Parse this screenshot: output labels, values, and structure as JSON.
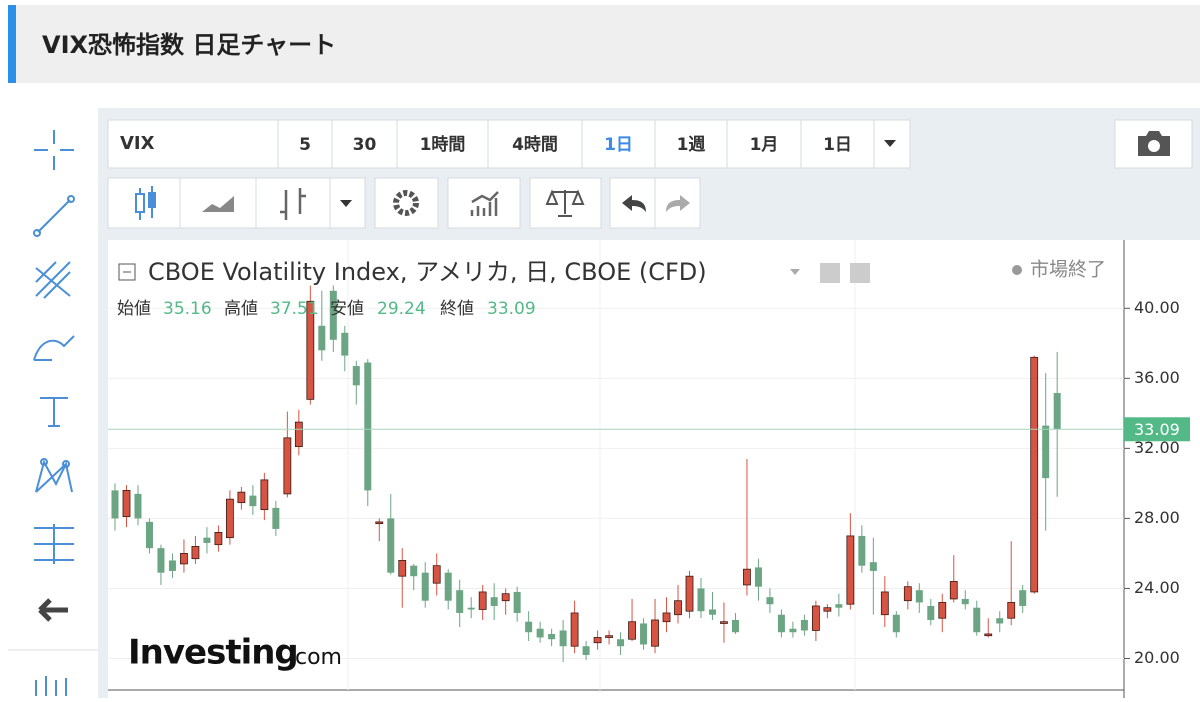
{
  "header": {
    "title": "VIX恐怖指数 日足チャート"
  },
  "toolbar": {
    "symbol": "VIX",
    "intervals": [
      "5",
      "30",
      "1時間",
      "4時間",
      "1日",
      "1週",
      "1月",
      "1日"
    ],
    "selected": 4
  },
  "legend": {
    "title": "CBOE Volatility Index, アメリカ, 日, CBOE (CFD)",
    "status": "市場終了",
    "open_label": "始値",
    "high_label": "高値",
    "low_label": "安値",
    "close_label": "終値"
  },
  "logo": {
    "main": "Investing",
    "suffix": ".com"
  },
  "chart_data": {
    "type": "candlestick",
    "up_color": "#d75442",
    "down_color": "#6ba583",
    "open": [
      29.6,
      28.1,
      29.4,
      27.8,
      26.3,
      25.6,
      25.4,
      25.7,
      26.9,
      26.5,
      26.9,
      28.9,
      29.3,
      28.5,
      28.6,
      29.4,
      32.1,
      34.8,
      39,
      41.0,
      38.6,
      36.7,
      36.9,
      27.7,
      28.0,
      24.7,
      25.3,
      24.9,
      24.3,
      24.9,
      23.9,
      22.9,
      22.8,
      23.5,
      23.3,
      23.8,
      22.1,
      21.7,
      21.4,
      21.6,
      20.7,
      20.7,
      20.9,
      21.2,
      21.1,
      21.1,
      22.0,
      20.7,
      22.1,
      22.5,
      22.7,
      24.0,
      22.8,
      22.0,
      22.2,
      24.2,
      25.2,
      23.5,
      22.5,
      21.7,
      22.2,
      21.6,
      22.7,
      23.1,
      23.1,
      27.0,
      25.5,
      22.5,
      22.5,
      23.3,
      23.9,
      23.0,
      22.3,
      23.4,
      23.4,
      22.9,
      21.3,
      22.3,
      22.3,
      23.9,
      23.8,
      33.3,
      35.16
    ],
    "high": [
      30,
      29.9,
      29.9,
      28,
      26.5,
      26,
      26.8,
      27,
      27.5,
      27.6,
      29.6,
      29.8,
      29.9,
      30.6,
      29,
      34.1,
      34.2,
      41.3,
      41,
      41.3,
      39,
      37,
      37.1,
      28,
      29.4,
      26.3,
      25.4,
      25.5,
      26,
      25.1,
      24.5,
      23.5,
      24.2,
      24.3,
      24,
      24.1,
      22.7,
      22.1,
      21.7,
      22.2,
      23.3,
      21,
      21.6,
      21.6,
      21.5,
      23.4,
      22.3,
      23.4,
      23.5,
      24.2,
      25.0,
      24.6,
      23.8,
      23.2,
      22.6,
      31.4,
      25.7,
      24,
      22.8,
      22.1,
      22.5,
      23.3,
      23.1,
      23.7,
      28.3,
      27.6,
      26.9,
      24.7,
      22.7,
      24.4,
      24.3,
      23.4,
      23.7,
      25.9,
      23.9,
      23.3,
      22.3,
      22.7,
      26.7,
      24.2,
      37.3,
      36.3,
      37.51
    ],
    "low": [
      27.3,
      27.5,
      27.6,
      26,
      24.2,
      24.6,
      24.9,
      25.4,
      26.0,
      26.1,
      26.5,
      28.5,
      28.2,
      27.9,
      27,
      29.2,
      31.6,
      34.5,
      37,
      37.5,
      36.4,
      34.5,
      28.7,
      26.7,
      24.8,
      22.9,
      23.9,
      22.9,
      23.6,
      22.8,
      21.8,
      22.3,
      22.2,
      22.2,
      22.5,
      22.1,
      21.0,
      20.9,
      20.7,
      19.8,
      20.3,
      19.9,
      20.5,
      20.8,
      20.2,
      21.0,
      20.5,
      20.3,
      21.5,
      22.0,
      22.3,
      22.3,
      22.2,
      20.9,
      21.4,
      23.6,
      23.3,
      22.6,
      21.2,
      21.2,
      21.3,
      21.0,
      22.3,
      22.4,
      22.8,
      24.9,
      22.5,
      21.8,
      21.2,
      22.8,
      22.6,
      21.9,
      21.5,
      23.2,
      22.8,
      21.3,
      21.2,
      21.5,
      21.9,
      22.6,
      23.7,
      27.3,
      29.24
    ],
    "close": [
      28.0,
      29.6,
      28.0,
      26.3,
      24.9,
      25.0,
      26.0,
      26.4,
      26.6,
      27.2,
      29.1,
      29.5,
      28.7,
      30.2,
      27.4,
      32.6,
      33.5,
      40.4,
      37.6,
      38.2,
      37.3,
      35.6,
      29.6,
      27.8,
      24.9,
      25.6,
      24.7,
      23.3,
      25.3,
      23.3,
      22.6,
      22.8,
      23.8,
      23.0,
      23.7,
      22.6,
      21.5,
      21.2,
      21.1,
      20.7,
      22.6,
      20.2,
      21.2,
      21.3,
      20.7,
      22.1,
      20.8,
      22.2,
      22.6,
      23.3,
      24.7,
      22.7,
      22.5,
      22.1,
      21.5,
      25.1,
      24.1,
      23.1,
      21.5,
      21.5,
      21.6,
      23.0,
      22.9,
      22.9,
      27.0,
      25.3,
      25.0,
      23.8,
      21.5,
      24.1,
      23.2,
      22.2,
      23.2,
      24.4,
      23.1,
      21.5,
      21.4,
      22.0,
      23.2,
      23.0,
      37.2,
      30.3,
      33.09
    ],
    "ylim": [
      18.2,
      43.9
    ],
    "yticks": [
      {
        "value": 20,
        "label": "20.00"
      },
      {
        "value": 24,
        "label": "24.00"
      },
      {
        "value": 28,
        "label": "28.00"
      },
      {
        "value": 32,
        "label": "32.00"
      },
      {
        "value": 36,
        "label": "36.00"
      },
      {
        "value": 40,
        "label": "40.00"
      }
    ],
    "grid": true
  }
}
